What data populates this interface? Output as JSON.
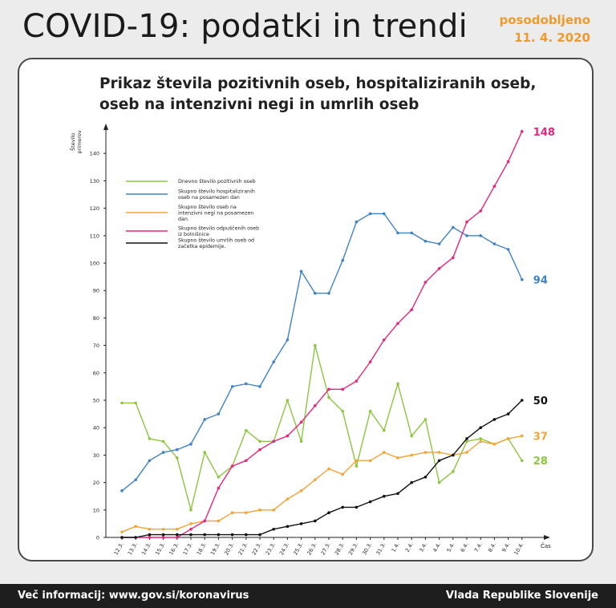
{
  "header": {
    "title": "COVID-19: podatki in trendi",
    "updated_label": "posodobljeno",
    "updated_date": "11. 4. 2020"
  },
  "footer": {
    "info": "Več informacij: www.gov.si/koronavirus",
    "org": "Vlada Republike Slovenije"
  },
  "colors": {
    "green": "#8cc63f",
    "blue": "#3f82c6",
    "orange": "#f4a338",
    "pink": "#e6267d",
    "black": "#111111"
  },
  "chart_data": {
    "type": "line",
    "title": "Prikaz števila pozitivnih oseb, hospitaliziranih oseb, oseb na intenzivni negi in umrlih oseb",
    "ylabel": "Število primerov",
    "xlabel": "Čas",
    "ylim": [
      0,
      150
    ],
    "yticks": [
      0,
      10,
      20,
      30,
      40,
      50,
      60,
      70,
      80,
      90,
      100,
      110,
      120,
      130,
      140
    ],
    "grid": false,
    "legend_position": "top-left",
    "categories": [
      "12.3.",
      "13.3.",
      "14.3.",
      "15.3.",
      "16.3.",
      "17.3.",
      "18.3.",
      "19.3.",
      "20.3.",
      "21.3.",
      "22.3.",
      "23.3.",
      "24.3.",
      "25.3.",
      "26.3.",
      "27.3.",
      "28.3.",
      "29.3.",
      "30.3.",
      "31.3.",
      "1.4.",
      "2.4.",
      "3.4.",
      "4.4.",
      "5.4.",
      "6.4.",
      "7.4.",
      "8.4.",
      "9.4.",
      "10.4."
    ],
    "series": [
      {
        "name": "Dnevno število pozitivnih oseb",
        "color": "green",
        "values": [
          49,
          49,
          36,
          35,
          29,
          10,
          31,
          22,
          26,
          39,
          35,
          35,
          50,
          35,
          70,
          51,
          46,
          26,
          46,
          39,
          56,
          37,
          43,
          20,
          24,
          35,
          36,
          34,
          36,
          28
        ],
        "end_label": "28"
      },
      {
        "name": "Skupno število hospitaliziranih oseb na posamezen dan",
        "color": "blue",
        "values": [
          17,
          21,
          28,
          31,
          32,
          34,
          43,
          45,
          55,
          56,
          55,
          64,
          72,
          97,
          89,
          89,
          101,
          115,
          118,
          118,
          111,
          111,
          108,
          107,
          113,
          110,
          110,
          107,
          105,
          94
        ],
        "end_label": "94"
      },
      {
        "name": "Skupno število oseb na intenzivni negi na posamezen dan.",
        "color": "orange",
        "values": [
          2,
          4,
          3,
          3,
          3,
          5,
          6,
          6,
          9,
          9,
          10,
          10,
          14,
          17,
          21,
          25,
          23,
          28,
          28,
          31,
          29,
          30,
          31,
          31,
          30,
          31,
          35,
          34,
          36,
          37
        ],
        "end_label": "37"
      },
      {
        "name": "Skupno število odpuščenih oseb iz bolnišnice",
        "color": "pink",
        "values": [
          0,
          0,
          0,
          0,
          0,
          3,
          6,
          18,
          26,
          28,
          32,
          35,
          37,
          42,
          48,
          54,
          54,
          57,
          64,
          72,
          78,
          83,
          93,
          98,
          102,
          115,
          119,
          128,
          137,
          148
        ],
        "end_label": "148"
      },
      {
        "name": "Skupno število umrlih oseb od začetka epidemije.",
        "color": "black",
        "values": [
          0,
          0,
          1,
          1,
          1,
          1,
          1,
          1,
          1,
          1,
          1,
          3,
          4,
          5,
          6,
          9,
          11,
          11,
          13,
          15,
          16,
          20,
          22,
          28,
          30,
          36,
          40,
          43,
          45,
          50
        ],
        "end_label": "50"
      }
    ]
  }
}
